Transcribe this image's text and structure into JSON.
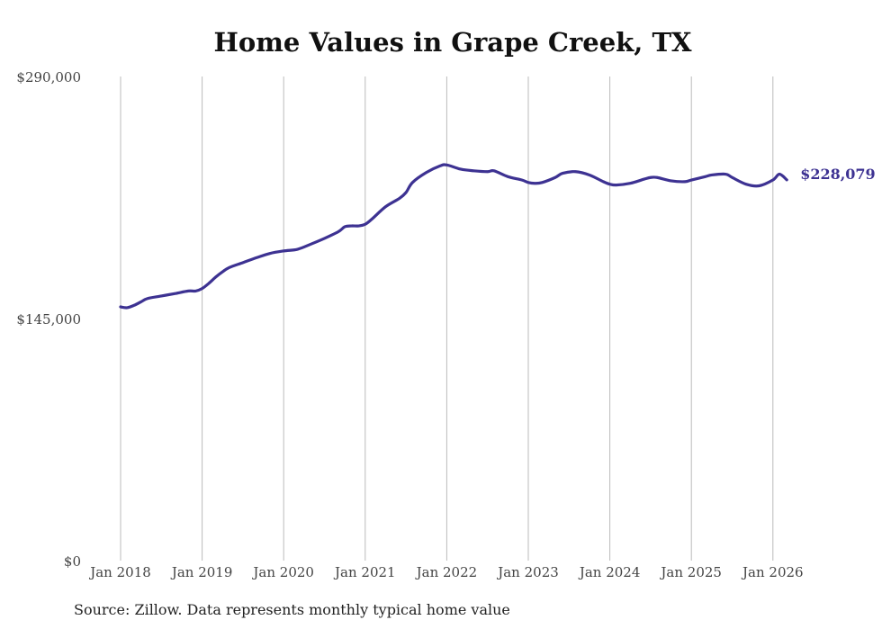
{
  "title": "Home Values in Grape Creek, TX",
  "source_note": "Source: Zillow. Data represents monthly typical home value",
  "colors": {
    "line": "#3d3292",
    "grid": "#bbbbbb",
    "text": "#444444"
  },
  "chart_data": {
    "type": "line",
    "title": "Home Values in Grape Creek, TX",
    "xlabel": "",
    "ylabel": "",
    "ylim": [
      0,
      290000
    ],
    "xlim": [
      2018.0,
      2026.25
    ],
    "grid": "vertical",
    "y_ticks": [
      {
        "value": 0,
        "label": "$0"
      },
      {
        "value": 145000,
        "label": "$145,000"
      },
      {
        "value": 290000,
        "label": "$290,000"
      }
    ],
    "x_ticks": [
      {
        "value": 2018,
        "label": "Jan 2018"
      },
      {
        "value": 2019,
        "label": "Jan 2019"
      },
      {
        "value": 2020,
        "label": "Jan 2020"
      },
      {
        "value": 2021,
        "label": "Jan 2021"
      },
      {
        "value": 2022,
        "label": "Jan 2022"
      },
      {
        "value": 2023,
        "label": "Jan 2023"
      },
      {
        "value": 2024,
        "label": "Jan 2024"
      },
      {
        "value": 2025,
        "label": "Jan 2025"
      },
      {
        "value": 2026,
        "label": "Jan 2026"
      }
    ],
    "series": [
      {
        "name": "Typical home value",
        "x": [
          2018.0,
          2018.08,
          2018.17,
          2018.25,
          2018.33,
          2018.5,
          2018.67,
          2018.83,
          2018.92,
          2019.0,
          2019.08,
          2019.17,
          2019.25,
          2019.33,
          2019.5,
          2019.67,
          2019.83,
          2020.0,
          2020.17,
          2020.33,
          2020.5,
          2020.67,
          2020.75,
          2020.83,
          2020.92,
          2021.0,
          2021.08,
          2021.25,
          2021.42,
          2021.5,
          2021.58,
          2021.75,
          2021.92,
          2022.0,
          2022.17,
          2022.33,
          2022.5,
          2022.58,
          2022.75,
          2022.92,
          2023.0,
          2023.08,
          2023.17,
          2023.33,
          2023.42,
          2023.58,
          2023.75,
          2023.92,
          2024.0,
          2024.08,
          2024.25,
          2024.42,
          2024.5,
          2024.58,
          2024.75,
          2024.92,
          2025.0,
          2025.17,
          2025.25,
          2025.42,
          2025.5,
          2025.67,
          2025.83,
          2026.0,
          2026.08,
          2026.17
        ],
        "values": [
          152000,
          151500,
          153000,
          155000,
          157000,
          158500,
          160000,
          161500,
          161500,
          163000,
          166000,
          170000,
          173000,
          175500,
          178500,
          181500,
          184000,
          185500,
          186500,
          189500,
          193000,
          197000,
          200000,
          200500,
          200500,
          201500,
          204500,
          212000,
          217000,
          220500,
          226500,
          232500,
          236500,
          237000,
          234500,
          233500,
          233000,
          233500,
          230000,
          228000,
          226500,
          226000,
          226500,
          229500,
          232000,
          233000,
          231000,
          227000,
          225500,
          225000,
          226000,
          228500,
          229500,
          229500,
          227500,
          227000,
          228000,
          230000,
          231000,
          231500,
          229500,
          225500,
          224500,
          228000,
          231500,
          228079
        ]
      }
    ],
    "end_label": "$228,079"
  }
}
